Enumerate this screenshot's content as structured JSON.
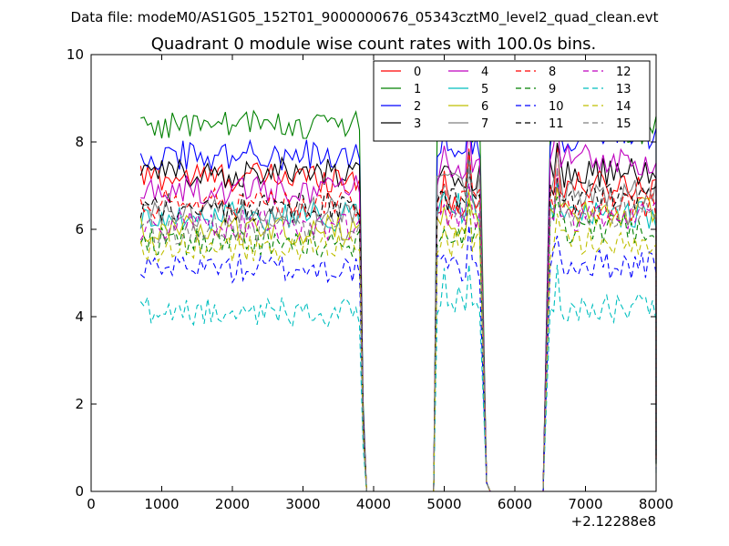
{
  "figure": {
    "suptitle": "Data file: modeM0/AS1G05_152T01_9000000676_05343cztM0_level2_quad_clean.evt",
    "title": "Quadrant 0 module wise count rates with 100.0s bins."
  },
  "chart_data": {
    "type": "line",
    "title": "Quadrant 0 module wise count rates with 100.0s bins.",
    "xlabel": "",
    "ylabel": "",
    "x_offset_label": "+2.12288e8",
    "xlim": [
      0,
      8000
    ],
    "ylim": [
      0,
      10
    ],
    "xticks": [
      0,
      1000,
      2000,
      3000,
      4000,
      5000,
      6000,
      7000,
      8000
    ],
    "yticks": [
      0,
      2,
      4,
      6,
      8,
      10
    ],
    "grid": false,
    "legend": {
      "placement": "top-right",
      "columns": 4
    },
    "x_segments": [
      [
        700,
        3800
      ],
      [
        4900,
        5500
      ],
      [
        6500,
        8000
      ]
    ],
    "series": [
      {
        "name": "0",
        "color": "#ff0000",
        "dash": "solid",
        "levels": [
          7.2,
          6.6,
          7.0
        ]
      },
      {
        "name": "1",
        "color": "#008000",
        "dash": "solid",
        "levels": [
          8.4,
          8.3,
          8.3
        ]
      },
      {
        "name": "2",
        "color": "#0000ff",
        "dash": "solid",
        "levels": [
          7.7,
          7.9,
          8.1
        ]
      },
      {
        "name": "3",
        "color": "#000000",
        "dash": "solid",
        "levels": [
          7.3,
          7.2,
          7.3
        ]
      },
      {
        "name": "4",
        "color": "#bf00bf",
        "dash": "solid",
        "levels": [
          6.9,
          7.3,
          7.6
        ]
      },
      {
        "name": "5",
        "color": "#00bfbf",
        "dash": "solid",
        "levels": [
          6.3,
          6.5,
          6.3
        ]
      },
      {
        "name": "6",
        "color": "#bfbf00",
        "dash": "solid",
        "levels": [
          6.0,
          6.1,
          6.4
        ]
      },
      {
        "name": "7",
        "color": "#808080",
        "dash": "solid",
        "levels": [
          6.4,
          7.0,
          6.8
        ]
      },
      {
        "name": "8",
        "color": "#ff0000",
        "dash": "dashed",
        "levels": [
          6.6,
          6.6,
          6.5
        ]
      },
      {
        "name": "9",
        "color": "#008000",
        "dash": "dashed",
        "levels": [
          5.7,
          5.8,
          6.0
        ]
      },
      {
        "name": "10",
        "color": "#0000ff",
        "dash": "dashed",
        "levels": [
          5.1,
          5.1,
          5.2
        ]
      },
      {
        "name": "11",
        "color": "#000000",
        "dash": "dashed",
        "levels": [
          6.5,
          6.7,
          6.7
        ]
      },
      {
        "name": "12",
        "color": "#bf00bf",
        "dash": "dashed",
        "levels": [
          6.1,
          6.3,
          6.3
        ]
      },
      {
        "name": "13",
        "color": "#00bfbf",
        "dash": "dashed",
        "levels": [
          4.1,
          4.4,
          4.2
        ]
      },
      {
        "name": "14",
        "color": "#bfbf00",
        "dash": "dashed",
        "levels": [
          5.6,
          5.7,
          5.7
        ]
      },
      {
        "name": "15",
        "color": "#808080",
        "dash": "dashed",
        "levels": [
          6.0,
          6.6,
          6.4
        ]
      }
    ]
  }
}
